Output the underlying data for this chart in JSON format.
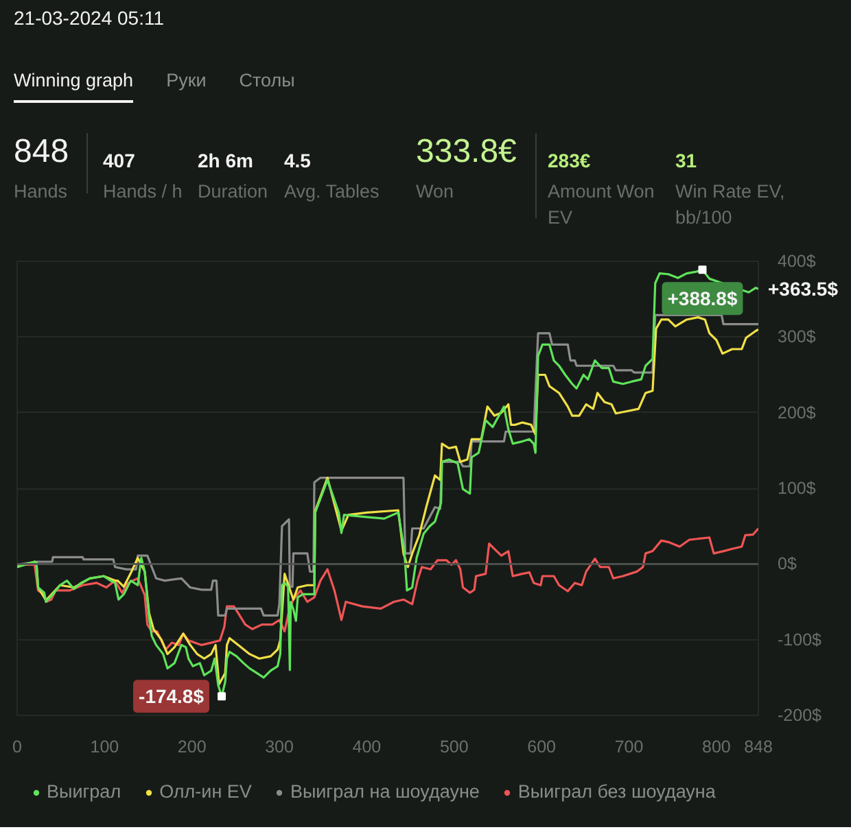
{
  "chart_data": [
    {
      "type": "other",
      "title": "21-03-2024 05:11",
      "annotations": [
        "Winning graph",
        "Руки",
        "Столы",
        "848",
        "Hands",
        "407",
        "Hands / h",
        "2h 6m",
        "Duration",
        "4.5",
        "Avg. Tables",
        "333.8€",
        "Won",
        "283€",
        "Amount Won EV",
        "31",
        "Win Rate EV, bb/100"
      ]
    },
    {
      "type": "line",
      "xlim": [
        0,
        848
      ],
      "ylim": [
        -200,
        400
      ],
      "xticks": [
        0,
        100,
        200,
        300,
        400,
        500,
        600,
        700,
        800,
        848
      ],
      "yticks": [
        {
          "value": -200,
          "label": "-200$"
        },
        {
          "value": -100,
          "label": "-100$"
        },
        {
          "value": 0,
          "label": "0$"
        },
        {
          "value": 100,
          "label": "100$"
        },
        {
          "value": 200,
          "label": "200$"
        },
        {
          "value": 300,
          "label": "300$"
        },
        {
          "value": 400,
          "label": "400$"
        }
      ],
      "grid": "y",
      "legend": "bottom",
      "ref_lines": [
        {
          "axis": "y",
          "value": 0,
          "color": "#4f534f"
        }
      ],
      "annotations": [
        {
          "text": "+388.8$",
          "x": 784,
          "y": 388.8
        },
        {
          "text": "-174.8$",
          "x": 234,
          "y": -174.8
        },
        {
          "text": "+363.5$",
          "x": 848,
          "y": 363.5
        }
      ],
      "series": [
        {
          "name": "Выиграл",
          "color": "#5fe35a",
          "x": [
            0,
            20,
            22,
            24,
            31,
            33,
            41,
            49,
            57,
            65,
            73,
            83,
            99,
            107,
            112,
            116,
            122,
            130,
            138,
            142,
            146,
            149,
            151,
            154,
            159,
            167,
            172,
            180,
            188,
            193,
            196,
            201,
            209,
            214,
            222,
            226,
            230,
            234,
            238,
            240,
            243,
            251,
            259,
            266,
            274,
            282,
            290,
            298,
            301,
            303,
            306,
            310,
            312,
            313,
            316,
            319,
            321,
            327,
            337,
            340,
            341,
            355,
            368,
            371,
            374,
            400,
            420,
            436,
            443,
            446,
            452,
            457,
            465,
            472,
            478,
            485,
            486,
            494,
            504,
            510,
            518,
            520,
            528,
            536,
            544,
            557,
            562,
            567,
            578,
            586,
            591,
            593,
            596,
            601,
            609,
            614,
            620,
            627,
            635,
            640,
            648,
            653,
            661,
            669,
            677,
            682,
            693,
            703,
            714,
            719,
            727,
            730,
            735,
            745,
            756,
            766,
            776,
            784,
            792,
            837,
            845,
            848
          ],
          "values": [
            -4,
            3,
            2,
            -31,
            -38,
            -50,
            -40,
            -28,
            -22,
            -33,
            -25,
            -19,
            -16,
            -22,
            -25,
            -47,
            -40,
            -22,
            -28,
            8,
            -10,
            -47,
            -71,
            -95,
            -107,
            -119,
            -138,
            -131,
            -107,
            -110,
            -125,
            -135,
            -131,
            -147,
            -141,
            -125,
            -160,
            -174.8,
            -156,
            -125,
            -116,
            -122,
            -131,
            -138,
            -144,
            -150,
            -141,
            -135,
            -119,
            -28,
            -25,
            -30,
            -140,
            -50,
            -60,
            -75,
            -44,
            -40,
            -40,
            -40,
            68,
            111,
            68,
            41,
            65,
            62,
            60,
            68,
            17,
            -35,
            -31,
            8,
            40,
            50,
            56,
            81,
            135,
            138,
            133,
            99,
            93,
            141,
            147,
            190,
            181,
            208,
            178,
            159,
            162,
            165,
            159,
            147,
            275,
            290,
            290,
            269,
            262,
            250,
            238,
            232,
            250,
            244,
            269,
            259,
            259,
            241,
            238,
            241,
            244,
            262,
            271,
            371,
            384,
            383,
            378,
            384,
            386,
            388.8,
            377,
            359,
            365,
            363.5
          ]
        },
        {
          "name": "Олл-ин EV",
          "color": "#f0e046",
          "x": [
            0,
            20,
            22,
            24,
            33,
            49,
            65,
            83,
            99,
            112,
            115,
            122,
            130,
            138,
            146,
            151,
            156,
            165,
            172,
            180,
            190,
            198,
            206,
            214,
            222,
            227,
            231,
            238,
            240,
            243,
            253,
            266,
            277,
            290,
            298,
            301,
            306,
            316,
            321,
            332,
            340,
            341,
            355,
            371,
            379,
            400,
            436,
            442,
            447,
            452,
            460,
            468,
            478,
            484,
            486,
            494,
            502,
            507,
            515,
            520,
            531,
            538,
            546,
            554,
            562,
            565,
            570,
            578,
            588,
            593,
            596,
            604,
            609,
            620,
            630,
            635,
            643,
            651,
            659,
            664,
            672,
            680,
            685,
            698,
            711,
            719,
            727,
            731,
            737,
            745,
            753,
            766,
            779,
            787,
            792,
            800,
            807,
            818,
            829,
            834,
            845,
            848
          ],
          "values": [
            -4,
            3,
            2,
            -31,
            -48,
            -28,
            -31,
            -19,
            -16,
            -22,
            -22,
            -30,
            -12,
            8,
            -10,
            -65,
            -86,
            -100,
            -119,
            -110,
            -92,
            -107,
            -119,
            -125,
            -119,
            -107,
            -159,
            -144,
            -107,
            -98,
            -107,
            -119,
            -125,
            -122,
            -113,
            -101,
            -13,
            -47,
            -31,
            -28,
            -28,
            70,
            114,
            44,
            65,
            68,
            71,
            14,
            -4,
            14,
            38,
            75,
            117,
            111,
            159,
            153,
            155,
            135,
            138,
            165,
            165,
            208,
            196,
            200,
            211,
            184,
            184,
            187,
            184,
            171,
            250,
            250,
            235,
            226,
            208,
            196,
            196,
            211,
            205,
            226,
            214,
            211,
            199,
            202,
            205,
            226,
            229,
            311,
            323,
            323,
            314,
            323,
            326,
            323,
            305,
            296,
            278,
            284,
            284,
            299,
            308,
            310
          ]
        },
        {
          "name": "Выиграл на шоудауне",
          "color": "#8c8c8c",
          "x": [
            0,
            22,
            40,
            41,
            75,
            76,
            110,
            112,
            125,
            136,
            138,
            149,
            154,
            159,
            169,
            188,
            198,
            211,
            222,
            224,
            228,
            230,
            238,
            240,
            279,
            282,
            298,
            300,
            303,
            311,
            312,
            315,
            316,
            332,
            335,
            339,
            340,
            347,
            442,
            444,
            450,
            452,
            465,
            478,
            484,
            486,
            507,
            510,
            518,
            520,
            557,
            559,
            591,
            596,
            609,
            612,
            630,
            633,
            638,
            640,
            682,
            685,
            703,
            706,
            727,
            730,
            806,
            808,
            848
          ],
          "values": [
            -1,
            3,
            3,
            9,
            9,
            6,
            6,
            -4,
            -7,
            -7,
            11,
            11,
            -4,
            -19,
            -22,
            -19,
            -31,
            -34,
            -34,
            -22,
            -22,
            -68,
            -68,
            -59,
            -59,
            -68,
            -68,
            -53,
            50,
            59,
            -30,
            -30,
            14,
            14,
            -10,
            -10,
            108,
            114,
            114,
            14,
            14,
            47,
            47,
            75,
            73,
            135,
            135,
            129,
            129,
            162,
            162,
            175,
            175,
            305,
            305,
            290,
            290,
            269,
            269,
            262,
            262,
            256,
            256,
            253,
            253,
            329,
            329,
            317,
            317
          ]
        },
        {
          "name": "Выиграл без шоудауна",
          "color": "#f05555",
          "x": [
            0,
            20,
            24,
            31,
            33,
            39,
            44,
            60,
            75,
            91,
            102,
            112,
            120,
            127,
            138,
            146,
            149,
            154,
            160,
            170,
            177,
            185,
            190,
            196,
            211,
            222,
            232,
            237,
            240,
            248,
            253,
            261,
            269,
            280,
            292,
            300,
            306,
            311,
            316,
            324,
            332,
            340,
            347,
            355,
            363,
            371,
            376,
            395,
            416,
            431,
            442,
            452,
            458,
            463,
            473,
            481,
            491,
            497,
            502,
            507,
            510,
            518,
            523,
            525,
            536,
            540,
            546,
            554,
            562,
            567,
            578,
            586,
            591,
            599,
            601,
            614,
            620,
            630,
            638,
            646,
            651,
            661,
            667,
            677,
            682,
            693,
            709,
            716,
            719,
            727,
            737,
            745,
            758,
            769,
            792,
            797,
            808,
            818,
            829,
            833,
            842,
            848
          ],
          "values": [
            -1,
            -1,
            -35,
            -41,
            -50,
            -47,
            -35,
            -35,
            -28,
            -25,
            -31,
            -22,
            -38,
            -25,
            -19,
            -41,
            -80,
            -89,
            -89,
            -113,
            -104,
            -107,
            -92,
            -101,
            -107,
            -104,
            -101,
            -83,
            -56,
            -56,
            -65,
            -80,
            -86,
            -80,
            -80,
            -74,
            -89,
            -62,
            -47,
            -35,
            -50,
            -44,
            -22,
            -7,
            -35,
            -74,
            -50,
            -56,
            -59,
            -50,
            -47,
            -53,
            -22,
            -4,
            -7,
            5,
            5,
            -1,
            5,
            -7,
            -31,
            -38,
            -34,
            -16,
            -13,
            27,
            20,
            11,
            17,
            -16,
            -13,
            -11,
            -25,
            -28,
            -16,
            -16,
            -28,
            -36,
            -25,
            -28,
            -10,
            7,
            -4,
            -4,
            -19,
            -16,
            -10,
            -4,
            14,
            17,
            31,
            29,
            23,
            32,
            35,
            14,
            17,
            20,
            23,
            38,
            39,
            47
          ]
        }
      ]
    }
  ]
}
